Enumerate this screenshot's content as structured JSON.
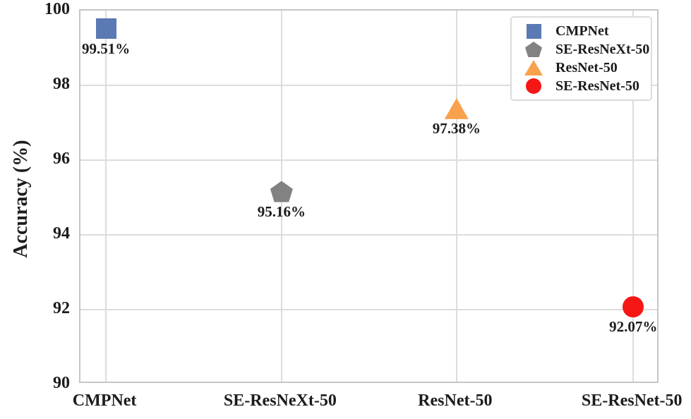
{
  "chart_data": {
    "type": "scatter",
    "title": "",
    "xlabel": "",
    "ylabel": "Accuracy (%)",
    "ylim": [
      90,
      100
    ],
    "yticks": [
      100,
      98,
      96,
      94,
      92,
      90
    ],
    "categories": [
      "CMPNet",
      "SE-ResNeXt-50",
      "ResNet-50",
      "SE-ResNet-50"
    ],
    "grid": true,
    "legend": {
      "position": "top-right"
    },
    "series": [
      {
        "name": "CMPNet",
        "category": "CMPNet",
        "value": 99.51,
        "label": "99.51%",
        "marker": "square",
        "color": "#5b7ab4"
      },
      {
        "name": "SE-ResNeXt-50",
        "category": "SE-ResNeXt-50",
        "value": 95.16,
        "label": "95.16%",
        "marker": "pentagon",
        "color": "#828282"
      },
      {
        "name": "ResNet-50",
        "category": "ResNet-50",
        "value": 97.38,
        "label": "97.38%",
        "marker": "triangle",
        "color": "#f9a24d"
      },
      {
        "name": "SE-ResNet-50",
        "category": "SE-ResNet-50",
        "value": 92.07,
        "label": "92.07%",
        "marker": "circle",
        "color": "#f51616"
      }
    ]
  },
  "colors": {
    "grid": "#dcdcdc",
    "plot_border": "#c6c6c6",
    "text": "#1c1c1c",
    "legend_border": "#dcdcdc",
    "background": "#ffffff"
  }
}
